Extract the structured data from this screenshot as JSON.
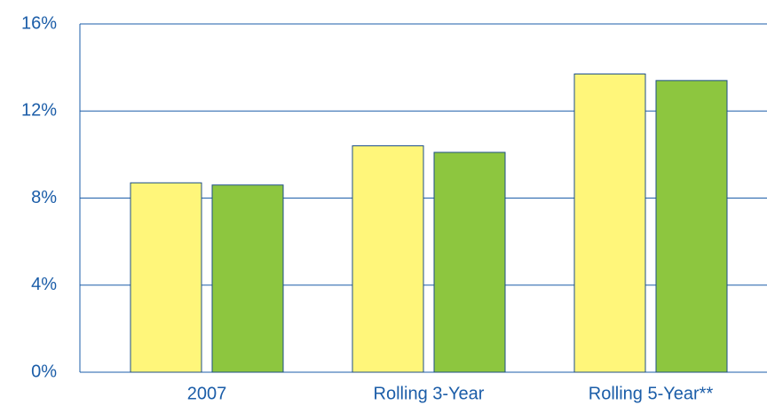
{
  "chart_data": {
    "type": "bar",
    "categories": [
      "2007",
      "Rolling 3-Year",
      "Rolling 5-Year**"
    ],
    "series": [
      {
        "color": "#fff67a",
        "values": [
          8.7,
          10.4,
          13.7
        ]
      },
      {
        "color": "#8dc63f",
        "values": [
          8.6,
          10.1,
          13.4
        ]
      }
    ],
    "ylim": [
      0,
      16
    ],
    "yticks": [
      {
        "value": 0,
        "label": "0%"
      },
      {
        "value": 4,
        "label": "4%"
      },
      {
        "value": 8,
        "label": "8%"
      },
      {
        "value": 12,
        "label": "12%"
      },
      {
        "value": 16,
        "label": "16%"
      }
    ],
    "grid": true
  }
}
